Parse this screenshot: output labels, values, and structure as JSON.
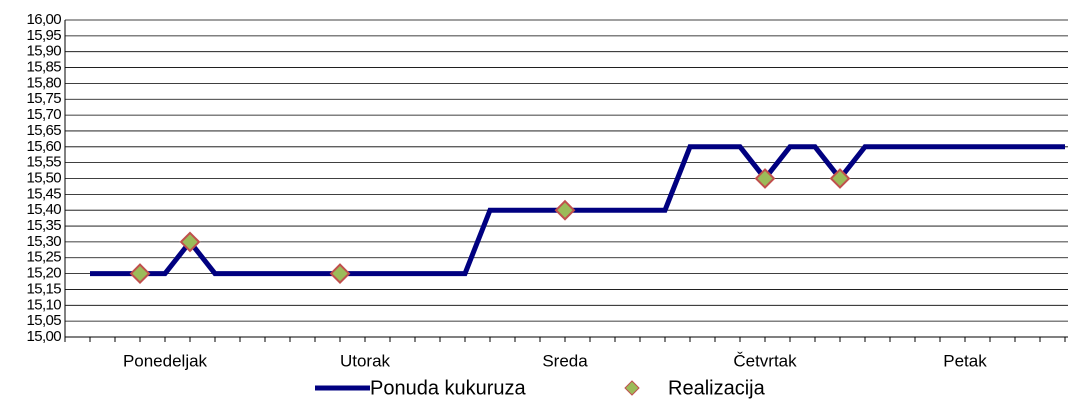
{
  "chart_data": {
    "type": "line",
    "categories": [
      null,
      null,
      null,
      null,
      "Ponedeljak",
      null,
      null,
      null,
      null,
      null,
      null,
      null,
      "Utorak",
      null,
      null,
      null,
      null,
      null,
      null,
      null,
      "Sreda",
      null,
      null,
      null,
      null,
      null,
      null,
      null,
      "Četvrtak",
      null,
      null,
      null,
      null,
      null,
      null,
      null,
      "Petak",
      null,
      null,
      null,
      null
    ],
    "series": [
      {
        "name": "Ponuda kukuruza",
        "color": "#000080",
        "marker": "none",
        "values": [
          null,
          15.2,
          15.2,
          15.2,
          15.2,
          15.3,
          15.2,
          15.2,
          15.2,
          15.2,
          15.2,
          15.2,
          15.2,
          15.2,
          15.2,
          15.2,
          15.2,
          15.4,
          15.4,
          15.4,
          15.4,
          15.4,
          15.4,
          15.4,
          15.4,
          15.6,
          15.6,
          15.6,
          15.5,
          15.6,
          15.6,
          15.5,
          15.6,
          15.6,
          15.6,
          15.6,
          15.6,
          15.6,
          15.6,
          15.6,
          15.6
        ]
      },
      {
        "name": "Realizacija",
        "color": "#9bbb59",
        "edge_color": "#c0504d",
        "marker": "diamond",
        "values": [
          null,
          null,
          null,
          15.2,
          null,
          15.3,
          null,
          null,
          null,
          null,
          null,
          15.2,
          null,
          null,
          null,
          null,
          null,
          null,
          null,
          null,
          15.4,
          null,
          null,
          null,
          null,
          null,
          null,
          null,
          15.5,
          null,
          null,
          15.5,
          null,
          null,
          null,
          null,
          null,
          null,
          null,
          null,
          null
        ]
      }
    ],
    "ylim": [
      15.0,
      16.0
    ],
    "yticks": [
      {
        "value": 15.0,
        "label": "15,00"
      },
      {
        "value": 15.05,
        "label": "15,05"
      },
      {
        "value": 15.1,
        "label": "15,10"
      },
      {
        "value": 15.15,
        "label": "15,15"
      },
      {
        "value": 15.2,
        "label": "15,20"
      },
      {
        "value": 15.25,
        "label": "15,25"
      },
      {
        "value": 15.3,
        "label": "15,30"
      },
      {
        "value": 15.35,
        "label": "15,35"
      },
      {
        "value": 15.4,
        "label": "15,40"
      },
      {
        "value": 15.45,
        "label": "15,45"
      },
      {
        "value": 15.5,
        "label": "15,50"
      },
      {
        "value": 15.55,
        "label": "15,55"
      },
      {
        "value": 15.6,
        "label": "15,60"
      },
      {
        "value": 15.65,
        "label": "15,65"
      },
      {
        "value": 15.7,
        "label": "15,70"
      },
      {
        "value": 15.75,
        "label": "15,75"
      },
      {
        "value": 15.8,
        "label": "15,80"
      },
      {
        "value": 15.85,
        "label": "15,85"
      },
      {
        "value": 15.9,
        "label": "15,90"
      },
      {
        "value": 15.95,
        "label": "15,95"
      },
      {
        "value": 16.0,
        "label": "16,00"
      }
    ],
    "grid": true,
    "legend": "bottom"
  }
}
